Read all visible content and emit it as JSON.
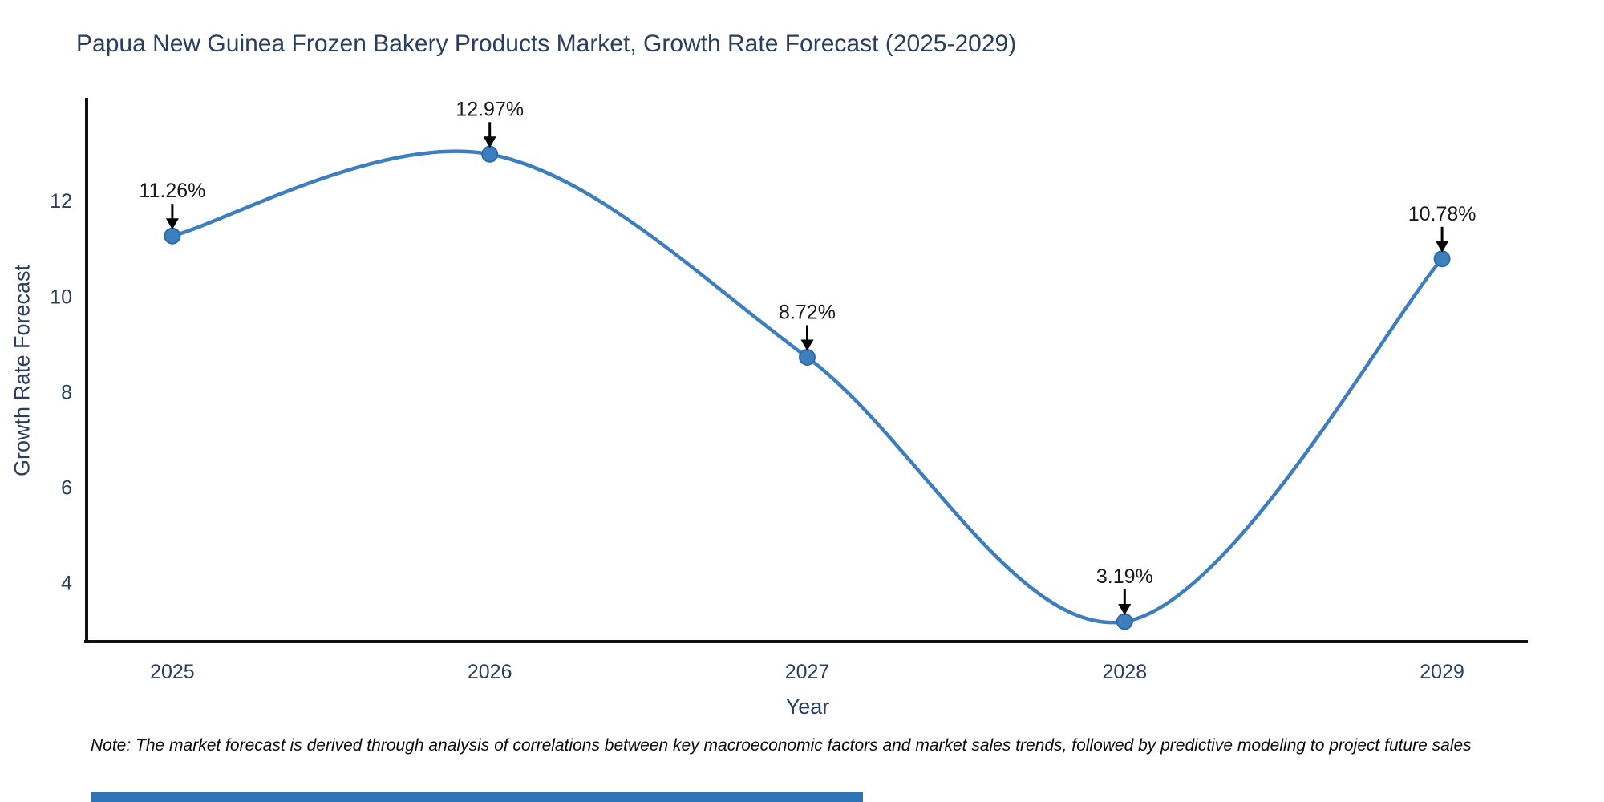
{
  "title": "Papua New Guinea Frozen Bakery Products Market, Growth Rate Forecast (2025-2029)",
  "axes": {
    "x_title": "Year",
    "y_title": "Growth Rate Forecast"
  },
  "note": "Note: The market forecast is derived through analysis of correlations between key macroeconomic factors and market sales trends, followed by predictive modeling to project future sales",
  "colors": {
    "line": "#3d7ebf",
    "marker_fill": "#3d7ebf",
    "marker_edge": "#2f6ba3",
    "axis_line": "#111111",
    "tick_text": "#2a3f5f",
    "annotation_text": "#1a1a1a",
    "arrow": "#000000",
    "accent_bar": "#2d73b5"
  },
  "chart_data": {
    "type": "line",
    "line_shape": "spline",
    "title": "Papua New Guinea Frozen Bakery Products Market, Growth Rate Forecast (2025-2029)",
    "xlabel": "Year",
    "ylabel": "Growth Rate Forecast",
    "x": [
      2025,
      2026,
      2027,
      2028,
      2029
    ],
    "series": [
      {
        "name": "Growth Rate Forecast",
        "values": [
          11.26,
          12.97,
          8.72,
          3.19,
          10.78
        ]
      }
    ],
    "point_labels": [
      "11.26%",
      "12.97%",
      "8.72%",
      "3.19%",
      "10.78%"
    ],
    "annotation_style": "black-arrow-down-to-point",
    "yticks": [
      4,
      6,
      8,
      10,
      12
    ],
    "xlim": [
      2024.73,
      2029.27
    ],
    "ylim": [
      2.77,
      14.1
    ],
    "grid": false,
    "legend": "none",
    "marker": "circle"
  }
}
